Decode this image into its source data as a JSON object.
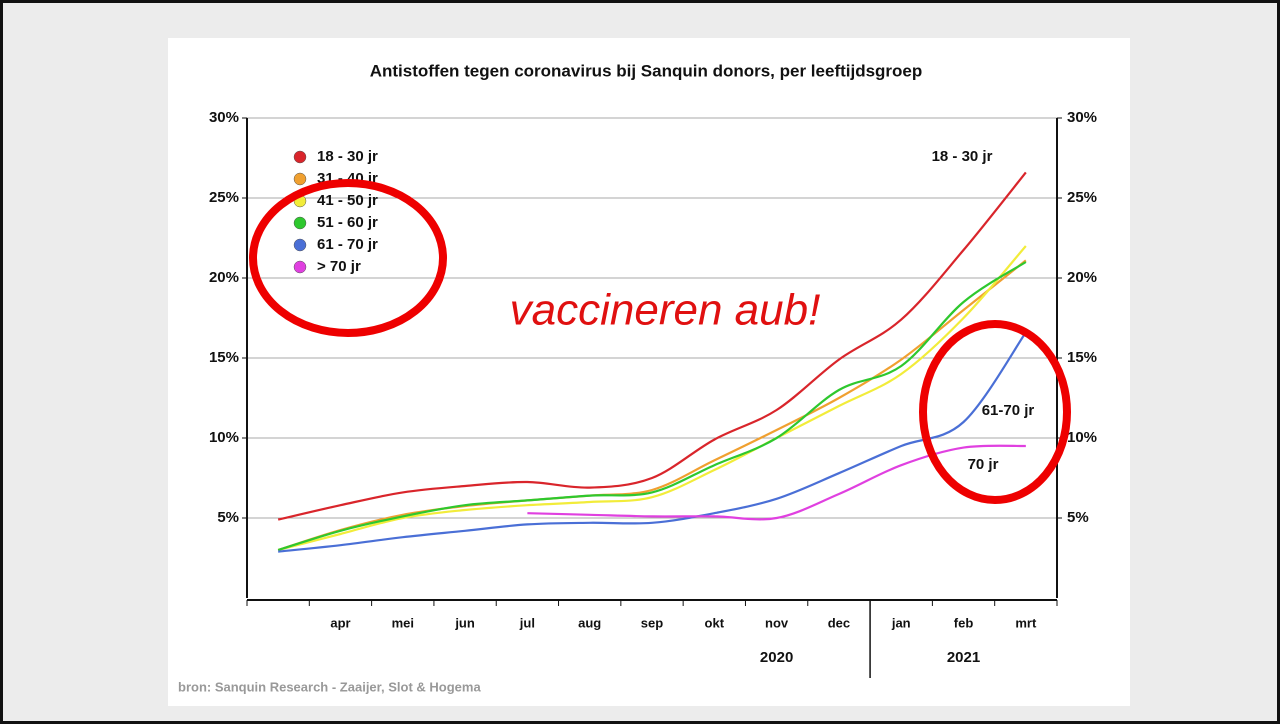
{
  "chart_data": {
    "type": "line",
    "title": "Antistoffen tegen coronavirus bij Sanquin donors, per leeftijdsgroep",
    "categories": [
      null,
      "apr",
      "mei",
      "jun",
      "jul",
      "aug",
      "sep",
      "okt",
      "nov",
      "dec",
      "jan",
      "feb",
      "mrt"
    ],
    "years": [
      "2020",
      "2021"
    ],
    "series": [
      {
        "name": "18 - 30 jr",
        "color": "#d9252b",
        "values": [
          4.9,
          5.8,
          6.6,
          7.0,
          7.25,
          6.9,
          7.5,
          9.9,
          11.75,
          14.9,
          17.4,
          21.75,
          26.6
        ]
      },
      {
        "name": "31 - 40 jr",
        "color": "#f0a030",
        "values": [
          3.0,
          4.25,
          5.2,
          5.75,
          6.1,
          6.4,
          6.75,
          8.6,
          10.5,
          12.5,
          14.9,
          18.0,
          21.1
        ]
      },
      {
        "name": "41 - 50 jr",
        "color": "#f2ec3a",
        "values": [
          3.0,
          4.0,
          5.0,
          5.5,
          5.8,
          6.0,
          6.3,
          8.0,
          10.0,
          12.0,
          14.0,
          17.5,
          22.0
        ]
      },
      {
        "name": "51 - 60 jr",
        "color": "#2ec82e",
        "values": [
          3.0,
          4.2,
          5.1,
          5.8,
          6.1,
          6.4,
          6.6,
          8.3,
          10.0,
          13.0,
          14.5,
          18.5,
          21.0
        ]
      },
      {
        "name": "61 - 70 jr",
        "color": "#4a6fd6",
        "values": [
          2.9,
          3.3,
          3.8,
          4.2,
          4.6,
          4.7,
          4.7,
          5.3,
          6.2,
          7.8,
          9.5,
          11.0,
          16.6
        ]
      },
      {
        "name": "> 70 jr",
        "color": "#e040e0",
        "values": [
          null,
          null,
          null,
          null,
          5.3,
          5.2,
          5.1,
          5.1,
          5.0,
          6.5,
          8.3,
          9.4,
          9.5
        ]
      }
    ],
    "ylim": [
      0,
      30
    ],
    "yticks": [
      {
        "value": 5,
        "label": "5%"
      },
      {
        "value": 10,
        "label": "10%"
      },
      {
        "value": 15,
        "label": "15%"
      },
      {
        "value": 20,
        "label": "20%"
      },
      {
        "value": 25,
        "label": "25%"
      },
      {
        "value": 30,
        "label": "30%"
      }
    ],
    "grid": true,
    "legend": "upper left",
    "annotations": [
      "18 - 30 jr",
      "61-70 jr",
      "70 jr",
      "vaccineren aub!"
    ],
    "source": "bron: Sanquin Research - Zaaijer, Slot & Hogema"
  }
}
